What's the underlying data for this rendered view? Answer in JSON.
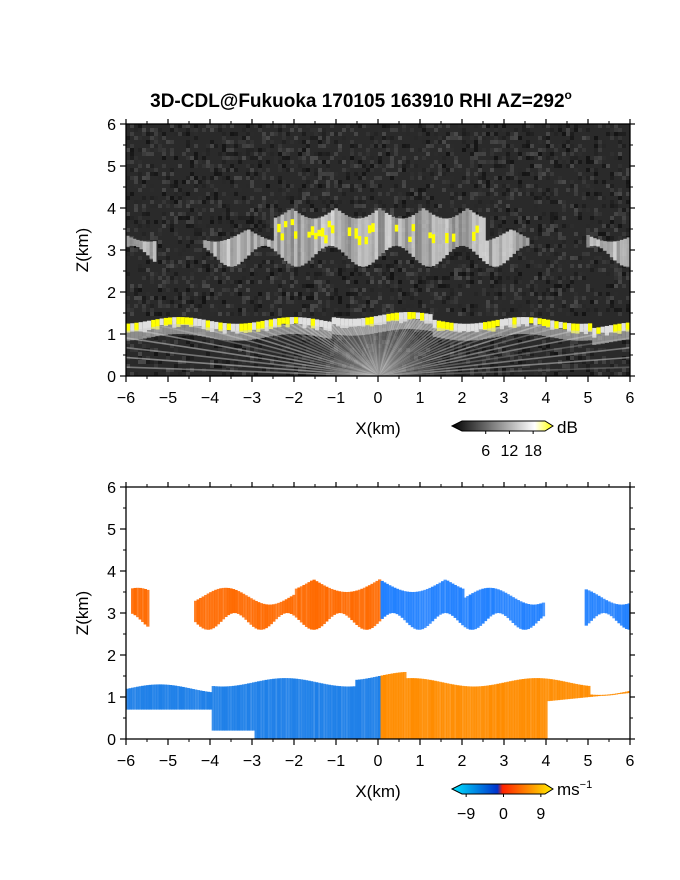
{
  "title": "3D-CDL@Fukuoka 170105 163910 RHI AZ=292",
  "title_superscript": "o",
  "chart_data": [
    {
      "type": "heatmap",
      "panel": "backscatter",
      "xlabel": "X(km)",
      "ylabel": "Z(km)",
      "xlim": [
        -6,
        6
      ],
      "ylim": [
        0,
        6
      ],
      "xticks": [
        "−6",
        "−5",
        "−4",
        "−3",
        "−2",
        "−1",
        "0",
        "1",
        "2",
        "3",
        "4",
        "5",
        "6"
      ],
      "yticks": [
        "0",
        "1",
        "2",
        "3",
        "4",
        "5",
        "6"
      ],
      "colorbar": {
        "unit": "dB",
        "tick_labels": [
          "6",
          "12",
          "18"
        ],
        "range": [
          0,
          21
        ],
        "colors": [
          "#000000",
          "#ffffff",
          "#ffff00"
        ]
      },
      "features": {
        "lower_layer_top_km": 1.3,
        "upper_layer_km": [
          2.6,
          4.0
        ],
        "saturated_color": "#ffff00",
        "background_color": "#2a2a2a"
      }
    },
    {
      "type": "heatmap",
      "panel": "doppler_velocity",
      "xlabel": "X(km)",
      "ylabel": "Z(km)",
      "xlim": [
        -6,
        6
      ],
      "ylim": [
        0,
        6
      ],
      "xticks": [
        "−6",
        "−5",
        "−4",
        "−3",
        "−2",
        "−1",
        "0",
        "1",
        "2",
        "3",
        "4",
        "5",
        "6"
      ],
      "yticks": [
        "0",
        "1",
        "2",
        "3",
        "4",
        "5",
        "6"
      ],
      "colorbar": {
        "unit": "ms",
        "unit_superscript": "−1",
        "tick_labels": [
          "−9",
          "0",
          "9"
        ],
        "range": [
          -10,
          10
        ],
        "colors": [
          "#00e5ff",
          "#0033cc",
          "#ff2200",
          "#ffee00"
        ]
      },
      "features": {
        "lower_layer_negative_x_color": "#1e7fe8",
        "lower_layer_positive_x_color": "#ff8c00",
        "upper_layer_negative_x_color": "#ff6a00",
        "upper_layer_positive_x_color": "#2080ff"
      }
    }
  ]
}
